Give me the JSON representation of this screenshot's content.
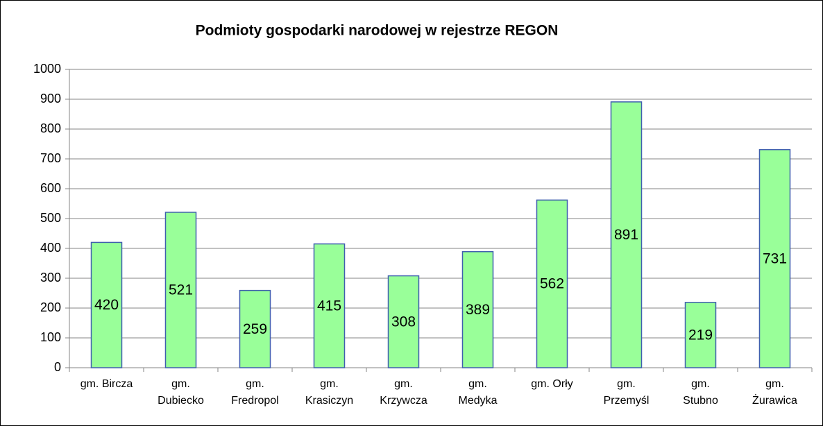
{
  "chart_data": {
    "type": "bar",
    "title": "Podmioty gospodarki narodowej w rejestrze REGON",
    "categories": [
      "gm. Bircza",
      "gm.\nDubiecko",
      "gm.\nFredropol",
      "gm.\nKrasiczyn",
      "gm.\nKrzywcza",
      "gm.\nMedyka",
      "gm. Orły",
      "gm.\nPrzemyśl",
      "gm.\nStubno",
      "gm.\nŻurawica"
    ],
    "values": [
      420,
      521,
      259,
      415,
      308,
      389,
      562,
      891,
      219,
      731
    ],
    "color": "#99ff99",
    "edge_color": "#3f5fae",
    "ylim": [
      0,
      1000
    ],
    "yticks": [
      0,
      100,
      200,
      300,
      400,
      500,
      600,
      700,
      800,
      900,
      1000
    ],
    "grid": true
  }
}
